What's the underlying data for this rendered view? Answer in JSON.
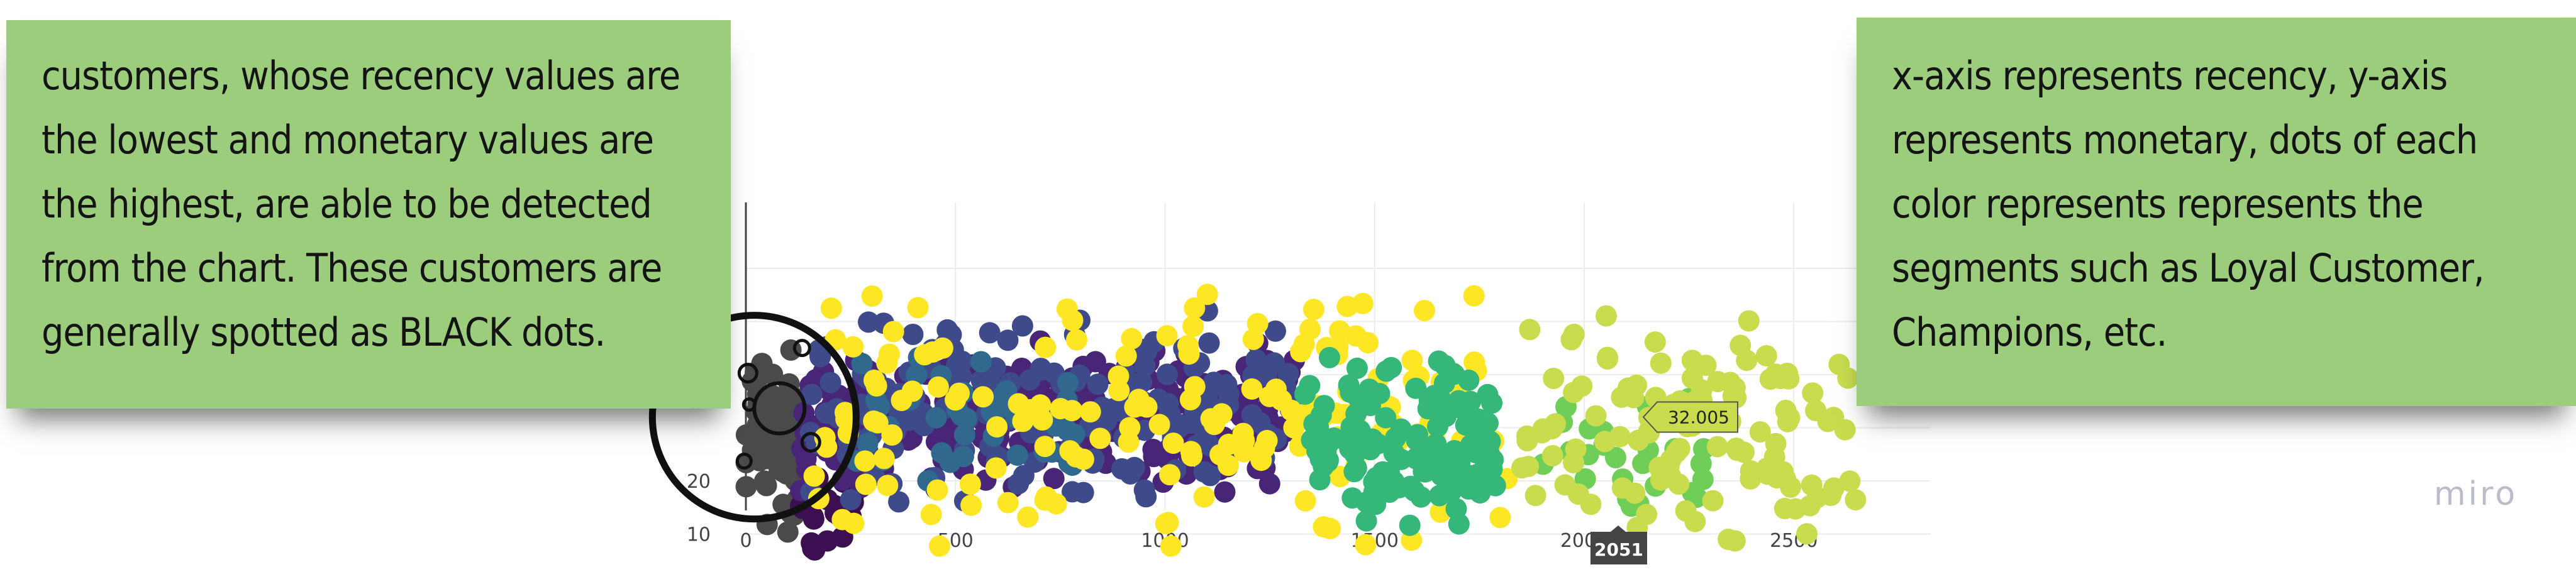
{
  "notes": {
    "left": "customers, whose recency values are the lowest and monetary values are the highest, are able to be detected from the chart. These customers are generally spotted as BLACK dots.",
    "right": "x-axis represents recency, y-axis represents monetary, dots of each color represents represents the segments such as Loyal Customer, Champions, etc."
  },
  "logo_text": "miro",
  "chart_data": {
    "type": "scatter",
    "title": "",
    "xlabel": "",
    "ylabel": "",
    "xlim": [
      0,
      2650
    ],
    "x_ticks": [
      0,
      500,
      1000,
      1500,
      2000,
      2500
    ],
    "x_tick_labels": [
      "0",
      "500",
      "1000",
      "1500",
      "2000",
      "2500"
    ],
    "y_ticks": [
      10,
      20
    ],
    "y_tick_labels": [
      "10",
      "20"
    ],
    "ylim": [
      3,
      68
    ],
    "grid": true,
    "legend": "none",
    "series": [
      {
        "color": "#4a4a4a",
        "x_range": [
          0,
          130
        ],
        "y_range": [
          7,
          49
        ],
        "count": 80
      },
      {
        "color": "#3c0f52",
        "x_range": [
          130,
          260
        ],
        "y_range": [
          5,
          24
        ],
        "count": 30
      },
      {
        "color": "#482576",
        "x_range": [
          130,
          1320
        ],
        "y_range": [
          17,
          47
        ],
        "count": 260
      },
      {
        "color": "#3e4a89",
        "x_range": [
          150,
          1300
        ],
        "y_range": [
          14,
          54
        ],
        "count": 180
      },
      {
        "color": "#31688e",
        "x_range": [
          250,
          800
        ],
        "y_range": [
          18,
          46
        ],
        "count": 40
      },
      {
        "color": "#fde725",
        "x_range": [
          160,
          1820
        ],
        "y_range": [
          6,
          59
        ],
        "count": 170
      },
      {
        "color": "#35b779",
        "x_range": [
          1330,
          1790
        ],
        "y_range": [
          8,
          44
        ],
        "count": 130
      },
      {
        "color": "#6ece58",
        "x_range": [
          1900,
          2300
        ],
        "y_range": [
          12,
          37
        ],
        "count": 30
      },
      {
        "color": "#c8dc4e",
        "x_range": [
          1850,
          2650
        ],
        "y_range": [
          6,
          54
        ],
        "count": 120
      }
    ],
    "annotations": {
      "hover_y_label": "32.005",
      "hover_y_value": 32.005,
      "hover_x_label": "2051",
      "hover_x_value": 2051,
      "hover_color": "#c8dc4e"
    },
    "highlight_circle": {
      "x": 20,
      "y": 32,
      "color": "#111111"
    }
  }
}
